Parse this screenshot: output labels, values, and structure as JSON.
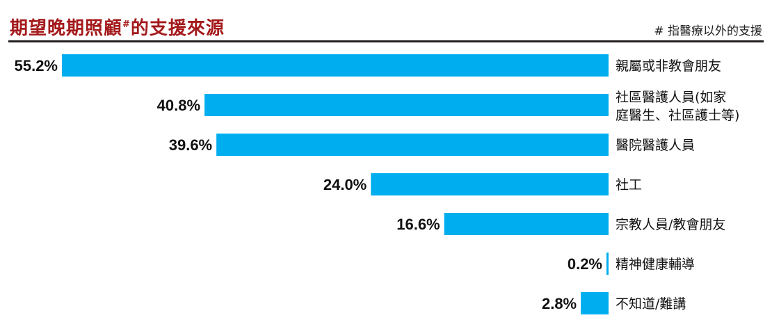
{
  "header": {
    "title_main": "期望晚期照顧",
    "title_mark": "#",
    "title_tail": "的支援來源",
    "note": "# 指醫療以外的支援"
  },
  "colors": {
    "bar": "#00aeef",
    "title": "#a41a1c",
    "rule": "#231f20"
  },
  "chart_data": {
    "type": "bar",
    "orientation": "horizontal",
    "title": "期望晚期照顧#的支援來源",
    "categories": [
      [
        "親屬或非教會朋友"
      ],
      [
        "社區醫護人員(如家",
        "庭醫生、社區護士等)"
      ],
      [
        "醫院醫護人員"
      ],
      [
        "社工"
      ],
      [
        "宗教人員/教會朋友"
      ],
      [
        "精神健康輔導"
      ],
      [
        "不知道/難講"
      ]
    ],
    "values": [
      55.2,
      40.8,
      39.6,
      24.0,
      16.6,
      0.2,
      2.8
    ],
    "value_labels": [
      "55.2%",
      "40.8%",
      "39.6%",
      "24.0%",
      "16.6%",
      "0.2%",
      "2.8%"
    ],
    "xlim": [
      0,
      55.2
    ],
    "bar_direction": "right-to-left",
    "grid": false,
    "legend": "none"
  }
}
